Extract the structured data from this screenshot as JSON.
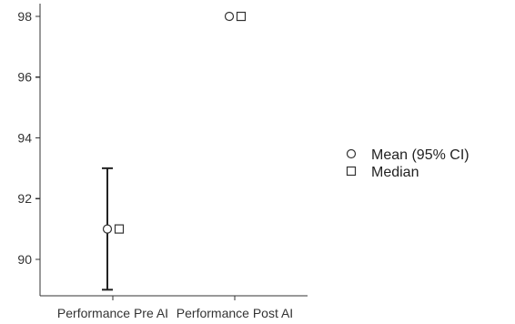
{
  "chart_data": {
    "type": "scatter",
    "title": "",
    "xlabel": "",
    "ylabel": "",
    "categories": [
      "Performance Pre AI",
      "Performance Post AI"
    ],
    "ylim": [
      88.8,
      98.3
    ],
    "yticks": [
      90,
      92,
      94,
      96,
      98
    ],
    "ytick_labels": [
      "90",
      "92",
      "94",
      "96",
      "98"
    ],
    "grid": false,
    "legend_position": "right",
    "legend": [
      {
        "label": "Mean (95% CI)",
        "icon": "circle-icon"
      },
      {
        "label": "Median",
        "icon": "square-icon"
      }
    ],
    "series": [
      {
        "name": "Mean (95% CI)",
        "marker": "circle",
        "values": [
          91,
          98
        ],
        "ci_lower": [
          89,
          98
        ],
        "ci_upper": [
          93,
          98
        ]
      },
      {
        "name": "Median",
        "marker": "square",
        "values": [
          91,
          98
        ]
      }
    ],
    "colors": {
      "axis": "#333333",
      "marker_stroke": "#333333",
      "marker_fill": "#ffffff",
      "errorbar": "#222222"
    }
  }
}
